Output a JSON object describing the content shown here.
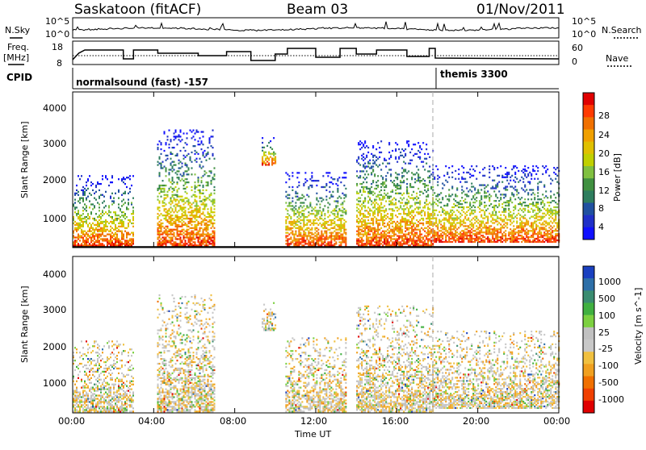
{
  "header": {
    "station": "Saskatoon (fitACF)",
    "beam": "Beam 03",
    "date": "01/Nov/2011"
  },
  "noise_panel": {
    "left_label": "N.Sky",
    "right_label": "N.Search",
    "left_ticks": [
      "10^5",
      "10^0"
    ],
    "right_ticks": [
      "10^5",
      "10^0"
    ]
  },
  "freq_panel": {
    "left_label_line1": "Freq.",
    "left_label_line2": "[MHz]",
    "right_label": "Nave",
    "left_ticks": [
      "18",
      "8"
    ],
    "right_ticks": [
      "60",
      "0"
    ]
  },
  "cpid_panel": {
    "label": "CPID",
    "modes": [
      "normalsound (fast) -157",
      "themis 3300"
    ]
  },
  "x_axis": {
    "ticks": [
      "00:00",
      "04:00",
      "08:00",
      "12:00",
      "16:00",
      "20:00",
      "00:00"
    ],
    "label": "Time UT"
  },
  "power_panel": {
    "ylabel": "Slant Range [km]",
    "yticks": [
      "4000",
      "3000",
      "2000",
      "1000"
    ],
    "colorbar_label": "Power [dB]",
    "colorbar_ticks": [
      "28",
      "24",
      "20",
      "16",
      "12",
      "8",
      "4"
    ],
    "colors": [
      "#e00000",
      "#ff3a00",
      "#f07000",
      "#f0a000",
      "#e0c000",
      "#c0d000",
      "#80c040",
      "#409040",
      "#2e7d5e",
      "#2050a0",
      "#2030c8",
      "#1010ff"
    ]
  },
  "velocity_panel": {
    "ylabel": "Slant Range [km]",
    "yticks": [
      "4000",
      "3000",
      "2000",
      "1000"
    ],
    "colorbar_label": "Velocity [m s^-1]",
    "colorbar_ticks": [
      "1000",
      "500",
      "100",
      "25",
      "-25",
      "-100",
      "-500",
      "-1000"
    ],
    "colors": [
      "#1a40c0",
      "#2d6fa8",
      "#3a8c70",
      "#40b040",
      "#7cd040",
      "#c0c0c0",
      "#c8c8c8",
      "#f0c040",
      "#f0a020",
      "#f07000",
      "#f04000",
      "#e00000"
    ]
  },
  "chart_data": {
    "type": "heatmap",
    "title": "Saskatoon (fitACF) Beam 03 01/Nov/2011",
    "xlabel": "Time UT",
    "ylabel": "Slant Range [km]",
    "xlim": [
      "00:00",
      "24:00"
    ],
    "ylim": [
      180,
      4600
    ],
    "mode_change_time": "17:45",
    "echo_regions": [
      {
        "start": "00:00",
        "end": "03:00",
        "range_km": [
          200,
          2200
        ],
        "power_dB": "8-28",
        "velocity_ms": "-100 to 25"
      },
      {
        "start": "04:10",
        "end": "07:00",
        "range_km": [
          200,
          3500
        ],
        "power_dB": "8-24",
        "velocity_ms": "-100 to 100"
      },
      {
        "start": "09:20",
        "end": "10:00",
        "range_km": [
          2500,
          3300
        ],
        "power_dB": "16-24",
        "velocity_ms": "-25 to 25"
      },
      {
        "start": "10:30",
        "end": "13:30",
        "range_km": [
          200,
          2300
        ],
        "power_dB": "8-20",
        "velocity_ms": "-100 to 100"
      },
      {
        "start": "14:00",
        "end": "17:45",
        "range_km": [
          200,
          3200
        ],
        "power_dB": "8-28",
        "velocity_ms": "-500 to 100"
      },
      {
        "start": "17:45",
        "end": "24:00",
        "range_km": [
          300,
          2500
        ],
        "power_dB": "4-28",
        "velocity_ms": "-500 to 500"
      }
    ]
  }
}
